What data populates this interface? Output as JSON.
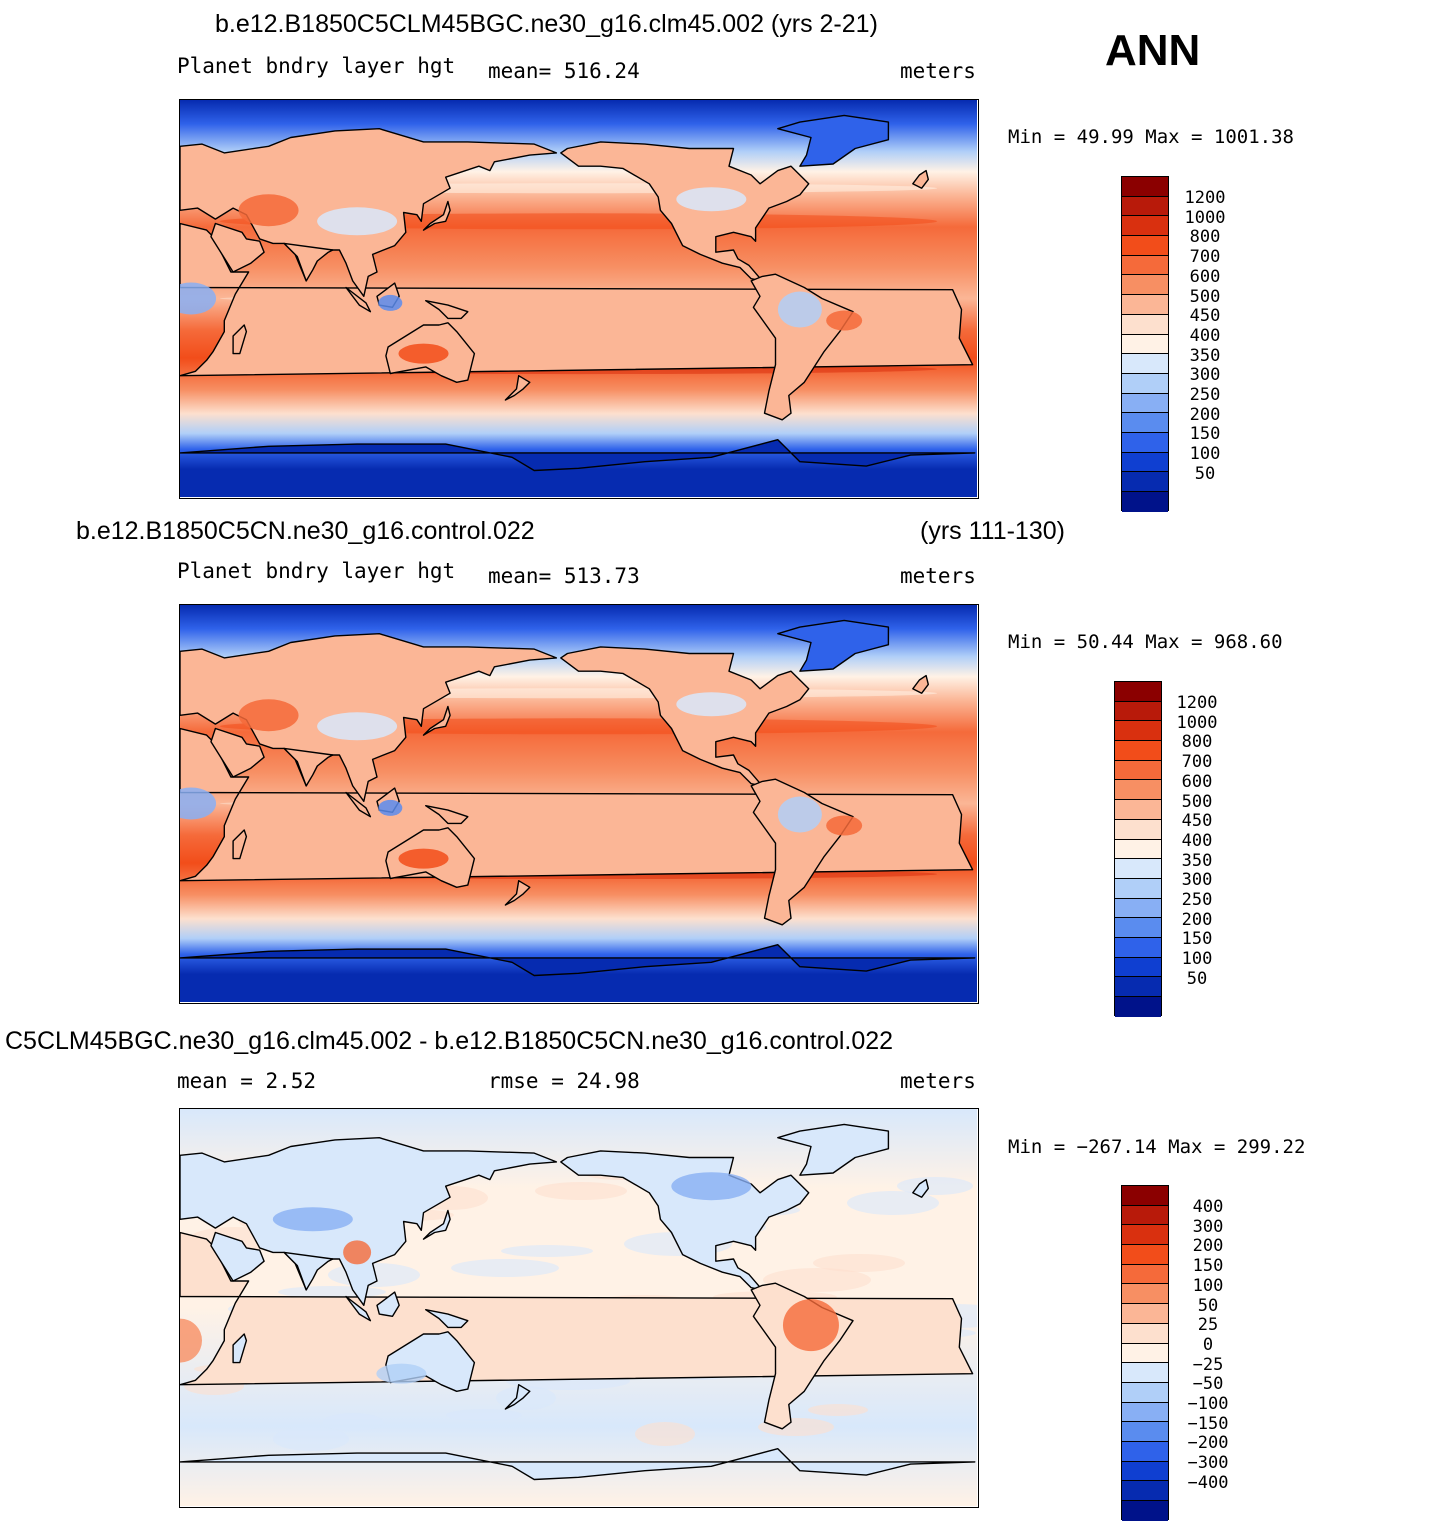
{
  "season": "ANN",
  "panels": [
    {
      "title": "b.e12.B1850C5CLM45BGC.ne30_g16.clm45.002 (yrs 2-21)",
      "title_right": "",
      "left": "Planet bndry layer hgt",
      "center": "mean= 516.24",
      "units": "meters",
      "minmax": "Min =   49.99 Max = 1001.38"
    },
    {
      "title": "b.e12.B1850C5CN.ne30_g16.control.022",
      "title_right": "(yrs 111-130)",
      "left": "Planet bndry layer hgt",
      "center": "mean= 513.73",
      "units": "meters",
      "minmax": "Min =   50.44 Max = 968.60"
    },
    {
      "title": "C5CLM45BGC.ne30_g16.clm45.002 - b.e12.B1850C5CN.ne30_g16.control.022",
      "title_right": "",
      "left": "mean =    2.52",
      "center": "rmse =   24.98",
      "units": "meters",
      "minmax": "Min = −267.14 Max = 299.22"
    }
  ],
  "chart_data": [
    {
      "type": "heatmap",
      "title": "b.e12.B1850C5CLM45BGC.ne30_g16.clm45.002 (yrs 2-21)",
      "variable": "Planet bndry layer hgt",
      "units": "meters",
      "mean": 516.24,
      "min": 49.99,
      "max": 1001.38,
      "colorbar_levels": [
        "1200",
        "1000",
        "800",
        "700",
        "600",
        "500",
        "450",
        "400",
        "350",
        "300",
        "250",
        "200",
        "150",
        "100",
        "50"
      ],
      "colors": [
        "#8b0000",
        "#b81a0a",
        "#d9300f",
        "#f24d1a",
        "#f56a3a",
        "#f78f63",
        "#fbb696",
        "#fde0ce",
        "#fff2e6",
        "#d8e8fb",
        "#b0cff8",
        "#88aff4",
        "#5a8cef",
        "#2f62ea",
        "#0f3fd1",
        "#062bb0",
        "#00128a"
      ]
    },
    {
      "type": "heatmap",
      "title": "b.e12.B1850C5CN.ne30_g16.control.022 (yrs 111-130)",
      "variable": "Planet bndry layer hgt",
      "units": "meters",
      "mean": 513.73,
      "min": 50.44,
      "max": 968.6,
      "colorbar_levels": [
        "1200",
        "1000",
        "800",
        "700",
        "600",
        "500",
        "450",
        "400",
        "350",
        "300",
        "250",
        "200",
        "150",
        "100",
        "50"
      ],
      "colors": [
        "#8b0000",
        "#b81a0a",
        "#d9300f",
        "#f24d1a",
        "#f56a3a",
        "#f78f63",
        "#fbb696",
        "#fde0ce",
        "#fff2e6",
        "#d8e8fb",
        "#b0cff8",
        "#88aff4",
        "#5a8cef",
        "#2f62ea",
        "#0f3fd1",
        "#062bb0",
        "#00128a"
      ]
    },
    {
      "type": "heatmap",
      "title": "C5CLM45BGC.ne30_g16.clm45.002 - b.e12.B1850C5CN.ne30_g16.control.022",
      "units": "meters",
      "mean": 2.52,
      "rmse": 24.98,
      "min": -267.14,
      "max": 299.22,
      "colorbar_levels": [
        "400",
        "300",
        "200",
        "150",
        "100",
        "50",
        "25",
        "0",
        "−25",
        "−50",
        "−100",
        "−150",
        "−200",
        "−300",
        "−400"
      ],
      "colors": [
        "#8b0000",
        "#b81a0a",
        "#d9300f",
        "#f24d1a",
        "#f56a3a",
        "#f78f63",
        "#fbb696",
        "#fde0ce",
        "#fff2e6",
        "#d8e8fb",
        "#b0cff8",
        "#88aff4",
        "#5a8cef",
        "#2f62ea",
        "#0f3fd1",
        "#062bb0",
        "#00128a"
      ]
    }
  ]
}
